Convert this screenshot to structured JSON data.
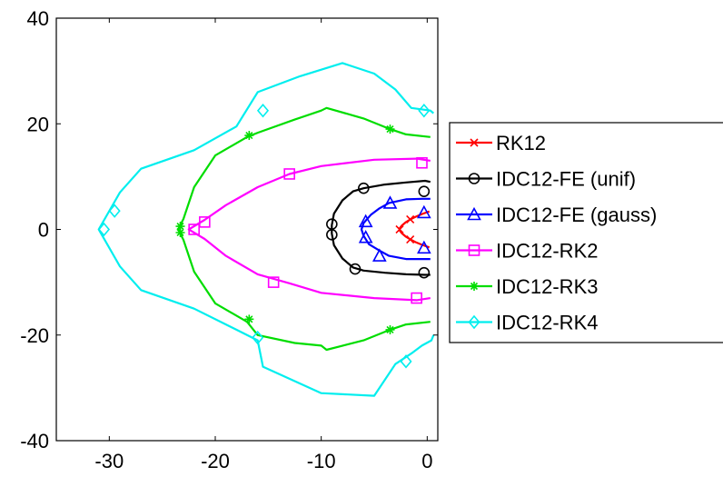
{
  "chart_data": {
    "type": "line",
    "title": "",
    "xlabel": "",
    "ylabel": "",
    "xlim": [
      -35,
      1
    ],
    "ylim": [
      -40,
      40
    ],
    "xticks": [
      -30,
      -20,
      -10,
      0
    ],
    "yticks": [
      -40,
      -20,
      0,
      20,
      40
    ],
    "xtick_labels": [
      "-30",
      "-20",
      "-10",
      "0"
    ],
    "ytick_labels": [
      "-40",
      "-20",
      "0",
      "20",
      "40"
    ],
    "grid": false,
    "legend_placement": "outside-right",
    "series": [
      {
        "name": "RK12",
        "color": "#ff0000",
        "marker": "x",
        "x": [
          0.2,
          -0.5,
          -1.1,
          -1.6,
          -2.0,
          -2.4,
          -2.6,
          -2.6,
          -2.4,
          -2.0,
          -1.6,
          -1.1,
          -0.5,
          0.2
        ],
        "y": [
          3.4,
          2.9,
          2.4,
          1.9,
          1.4,
          0.7,
          0.2,
          -0.2,
          -0.7,
          -1.4,
          -1.9,
          -2.4,
          -2.9,
          -3.4
        ],
        "marker_x": [
          -1.6,
          -2.6,
          -1.6
        ],
        "marker_y": [
          1.9,
          0.0,
          -1.9
        ]
      },
      {
        "name": "IDC12-FE (unif)",
        "color": "#000000",
        "marker": "o",
        "x": [
          0.3,
          -0.2,
          -2.0,
          -4.0,
          -6.0,
          -7.0,
          -8.0,
          -8.8,
          -9.0,
          -9.0,
          -8.8,
          -8.0,
          -7.0,
          -6.0,
          -4.0,
          -2.0,
          -0.2,
          0.3
        ],
        "y": [
          9.0,
          9.2,
          8.9,
          8.5,
          7.8,
          7.2,
          5.5,
          3.0,
          0.8,
          -0.8,
          -3.0,
          -5.5,
          -7.2,
          -7.8,
          -8.2,
          -8.5,
          -8.6,
          -8.6
        ],
        "marker_x": [
          -0.3,
          -6.0,
          -9.0,
          -9.0,
          -6.8,
          -0.3
        ],
        "marker_y": [
          7.2,
          7.8,
          1.0,
          -1.0,
          -7.5,
          -8.2
        ]
      },
      {
        "name": "IDC12-FE (gauss)",
        "color": "#0000ff",
        "marker": "^",
        "x": [
          0.3,
          -0.5,
          -2.0,
          -3.6,
          -4.5,
          -5.3,
          -6.0,
          -6.2,
          -6.0,
          -5.5,
          -4.5,
          -3.6,
          -2.0,
          -0.5,
          0.3
        ],
        "y": [
          5.8,
          5.8,
          5.7,
          5.0,
          4.0,
          2.8,
          1.2,
          0.0,
          -1.2,
          -2.8,
          -4.0,
          -5.0,
          -5.6,
          -5.6,
          -5.6
        ],
        "marker_x": [
          -0.3,
          -3.5,
          -5.8,
          -5.8,
          -4.5,
          -0.3
        ],
        "marker_y": [
          3.2,
          5.0,
          1.5,
          -1.5,
          -5.0,
          -3.5
        ]
      },
      {
        "name": "IDC12-RK2",
        "color": "#ff00ff",
        "marker": "s",
        "x": [
          0.3,
          -1.0,
          -5.0,
          -10.0,
          -13.0,
          -16.0,
          -19.0,
          -21.0,
          -22.5,
          -21.0,
          -19.0,
          -16.0,
          -13.0,
          -10.0,
          -5.0,
          -1.0,
          0.3
        ],
        "y": [
          13.0,
          13.4,
          13.2,
          12.0,
          10.5,
          8.0,
          4.6,
          1.8,
          0.0,
          -1.8,
          -5.0,
          -8.5,
          -10.2,
          -12.0,
          -13.0,
          -13.4,
          -13.0
        ],
        "marker_x": [
          -0.5,
          -13.0,
          -21.0,
          -22.0,
          -14.5,
          -1.0
        ],
        "marker_y": [
          12.6,
          10.5,
          1.4,
          0.0,
          -10.0,
          -13.0
        ]
      },
      {
        "name": "IDC12-RK3",
        "color": "#00dd00",
        "marker": "*",
        "x": [
          0.3,
          -2.0,
          -3.5,
          -6.0,
          -9.5,
          -10.0,
          -12.5,
          -16.0,
          -17.0,
          -20.0,
          -22.0,
          -23.0,
          -23.5,
          -23.0,
          -22.0,
          -20.0,
          -17.0,
          -16.0,
          -12.5,
          -10.0,
          -9.5,
          -6.0,
          -3.5,
          -2.0,
          0.3
        ],
        "y": [
          17.5,
          18.0,
          19.0,
          21.0,
          23.0,
          22.5,
          20.8,
          18.3,
          17.5,
          14.0,
          8.0,
          2.0,
          0.0,
          -2.0,
          -8.0,
          -14.0,
          -17.5,
          -20.0,
          -21.5,
          -22.0,
          -22.8,
          -21.0,
          -19.0,
          -18.0,
          -17.5
        ],
        "marker_x": [
          -3.5,
          -16.8,
          -23.3,
          -23.3,
          -16.8,
          -3.5
        ],
        "marker_y": [
          19.0,
          17.8,
          0.6,
          -0.6,
          -17.0,
          -19.0
        ]
      },
      {
        "name": "IDC12-RK4",
        "color": "#00eeee",
        "marker": "d",
        "x": [
          0.6,
          0.3,
          -1.5,
          -3.0,
          -5.0,
          -8.0,
          -12.0,
          -16.0,
          -18.0,
          -22.0,
          -27.0,
          -29.0,
          -31.0,
          -29.0,
          -27.0,
          -22.0,
          -18.0,
          -16.0,
          -15.5,
          -10.0,
          -5.0,
          -3.0,
          -1.5,
          -0.5,
          0.4,
          0.6
        ],
        "y": [
          22.0,
          22.5,
          23.0,
          26.5,
          29.5,
          31.5,
          29.0,
          26.0,
          19.5,
          15.0,
          11.5,
          7.0,
          0.0,
          -7.0,
          -11.5,
          -15.0,
          -19.0,
          -21.0,
          -26.0,
          -31.0,
          -31.5,
          -25.5,
          -23.5,
          -22.0,
          -21.0,
          -20.0
        ],
        "marker_x": [
          -0.3,
          -15.5,
          -29.5,
          -30.5,
          -16.0,
          -2.0
        ],
        "marker_y": [
          22.5,
          22.5,
          3.5,
          0.0,
          -20.5,
          -25.0
        ]
      }
    ]
  }
}
